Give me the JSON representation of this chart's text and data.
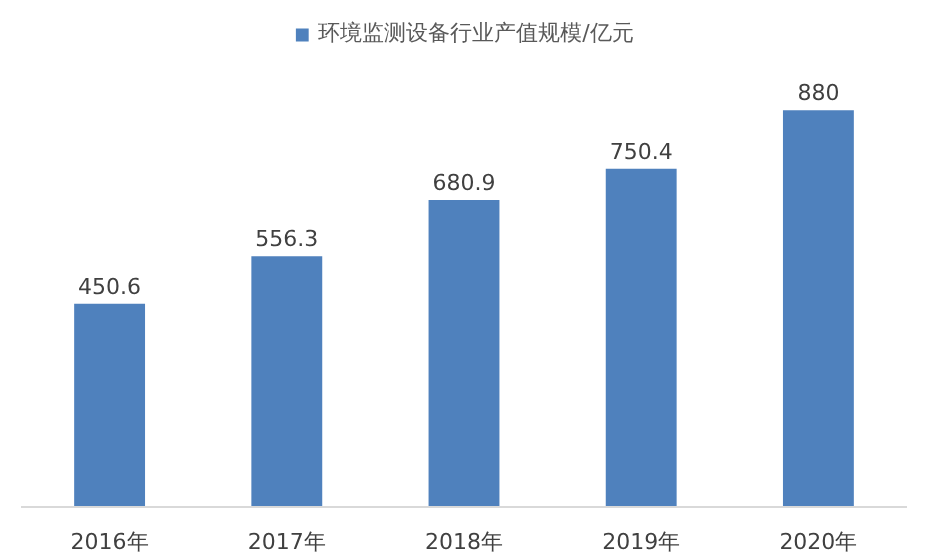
{
  "chart_data": {
    "type": "bar",
    "categories": [
      "2016年",
      "2017年",
      "2018年",
      "2019年",
      "2020年"
    ],
    "series": [
      {
        "name": "环境监测设备行业产值规模/亿元",
        "color": "#4f81bd",
        "values": [
          450.6,
          556.3,
          680.9,
          750.4,
          880
        ]
      }
    ],
    "data_labels": true,
    "legend": "top",
    "grid": false
  }
}
